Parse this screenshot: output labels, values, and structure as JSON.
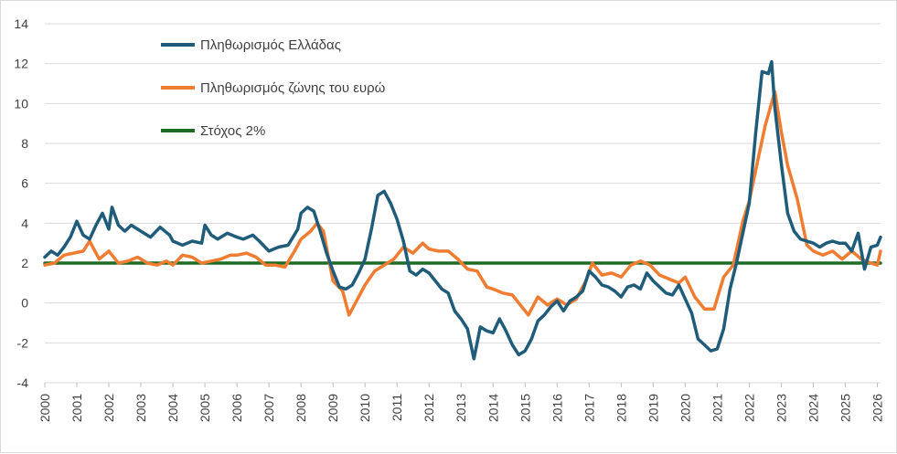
{
  "chart_data": {
    "type": "line",
    "title": "",
    "xlabel": "",
    "ylabel": "",
    "ylim": [
      -4,
      14
    ],
    "xlim": [
      2000,
      2026.1
    ],
    "y_ticks": [
      "-4",
      "-2",
      "0",
      "2",
      "4",
      "6",
      "8",
      "10",
      "12",
      "14"
    ],
    "x_ticks": [
      "2000",
      "2001",
      "2002",
      "2003",
      "2004",
      "2005",
      "2006",
      "2007",
      "2008",
      "2009",
      "2010",
      "2011",
      "2012",
      "2013",
      "2014",
      "2015",
      "2016",
      "2017",
      "2018",
      "2019",
      "2020",
      "2021",
      "2022",
      "2023",
      "2024",
      "2025",
      "2026"
    ],
    "grid": "horizontal",
    "legend_position": "top-left",
    "series": [
      {
        "name": "Πληθωρισμός Ελλάδας",
        "color": "#1f5c7a",
        "x": [
          2000,
          2000.2,
          2000.4,
          2000.6,
          2000.8,
          2001,
          2001.2,
          2001.4,
          2001.6,
          2001.8,
          2002,
          2002.1,
          2002.3,
          2002.5,
          2002.7,
          2003,
          2003.3,
          2003.6,
          2003.9,
          2004,
          2004.3,
          2004.6,
          2004.9,
          2005,
          2005.2,
          2005.4,
          2005.7,
          2006,
          2006.2,
          2006.5,
          2006.7,
          2007,
          2007.3,
          2007.6,
          2007.9,
          2008,
          2008.2,
          2008.4,
          2008.6,
          2008.8,
          2009,
          2009.2,
          2009.4,
          2009.6,
          2009.8,
          2010,
          2010.2,
          2010.4,
          2010.6,
          2010.8,
          2011,
          2011.2,
          2011.4,
          2011.6,
          2011.8,
          2012,
          2012.2,
          2012.4,
          2012.6,
          2012.8,
          2013,
          2013.2,
          2013.4,
          2013.6,
          2013.8,
          2014,
          2014.2,
          2014.4,
          2014.6,
          2014.8,
          2015,
          2015.2,
          2015.4,
          2015.6,
          2015.8,
          2016,
          2016.2,
          2016.4,
          2016.6,
          2016.8,
          2017,
          2017.2,
          2017.4,
          2017.6,
          2017.8,
          2018,
          2018.2,
          2018.4,
          2018.6,
          2018.8,
          2019,
          2019.2,
          2019.4,
          2019.6,
          2019.8,
          2020,
          2020.2,
          2020.4,
          2020.6,
          2020.8,
          2021,
          2021.2,
          2021.4,
          2021.6,
          2021.8,
          2022,
          2022.2,
          2022.4,
          2022.6,
          2022.7,
          2022.8,
          2023,
          2023.2,
          2023.4,
          2023.6,
          2023.8,
          2024,
          2024.2,
          2024.4,
          2024.6,
          2024.8,
          2025,
          2025.2,
          2025.4,
          2025.6,
          2025.8,
          2026,
          2026.1
        ],
        "values": [
          2.3,
          2.6,
          2.4,
          2.8,
          3.3,
          4.1,
          3.4,
          3.2,
          3.9,
          4.5,
          3.7,
          4.8,
          3.9,
          3.6,
          3.9,
          3.6,
          3.3,
          3.8,
          3.4,
          3.1,
          2.9,
          3.1,
          3.0,
          3.9,
          3.4,
          3.2,
          3.5,
          3.3,
          3.2,
          3.4,
          3.1,
          2.6,
          2.8,
          2.9,
          3.7,
          4.5,
          4.8,
          4.6,
          3.6,
          2.5,
          1.6,
          0.8,
          0.7,
          0.9,
          1.5,
          2.2,
          3.7,
          5.4,
          5.6,
          5.0,
          4.2,
          3.1,
          1.6,
          1.4,
          1.7,
          1.5,
          1.1,
          0.7,
          0.5,
          -0.4,
          -0.8,
          -1.3,
          -2.8,
          -1.2,
          -1.4,
          -1.5,
          -0.8,
          -1.4,
          -2.1,
          -2.6,
          -2.4,
          -1.8,
          -0.9,
          -0.6,
          -0.2,
          0.1,
          -0.4,
          0.1,
          0.3,
          0.6,
          1.6,
          1.3,
          0.9,
          0.8,
          0.6,
          0.3,
          0.8,
          0.9,
          0.7,
          1.5,
          1.1,
          0.8,
          0.5,
          0.4,
          0.9,
          0.2,
          -0.5,
          -1.8,
          -2.1,
          -2.4,
          -2.3,
          -1.3,
          0.7,
          2.0,
          3.5,
          5.0,
          8.5,
          11.6,
          11.5,
          12.1,
          9.8,
          7.0,
          4.5,
          3.6,
          3.2,
          3.1,
          3.0,
          2.8,
          3.0,
          3.1,
          3.0,
          3.0,
          2.6,
          3.5,
          1.7,
          2.8,
          2.9,
          3.3
        ],
        "points_note": ""
      },
      {
        "name": "Πληθωρισμός ζώνης του ευρώ",
        "color": "#f07c31",
        "x": [
          2000,
          2000.3,
          2000.6,
          2000.9,
          2001.2,
          2001.4,
          2001.7,
          2002,
          2002.3,
          2002.6,
          2002.9,
          2003.2,
          2003.5,
          2003.8,
          2004,
          2004.3,
          2004.6,
          2004.9,
          2005.2,
          2005.5,
          2005.8,
          2006,
          2006.3,
          2006.6,
          2006.9,
          2007.2,
          2007.5,
          2007.8,
          2008,
          2008.3,
          2008.5,
          2008.7,
          2009,
          2009.3,
          2009.5,
          2009.7,
          2010,
          2010.3,
          2010.6,
          2010.9,
          2011.2,
          2011.5,
          2011.8,
          2012,
          2012.3,
          2012.6,
          2012.9,
          2013.2,
          2013.5,
          2013.8,
          2014,
          2014.3,
          2014.6,
          2014.9,
          2015.1,
          2015.4,
          2015.7,
          2016,
          2016.3,
          2016.6,
          2016.9,
          2017.1,
          2017.4,
          2017.7,
          2018,
          2018.3,
          2018.6,
          2018.9,
          2019.2,
          2019.5,
          2019.8,
          2020,
          2020.3,
          2020.6,
          2020.9,
          2021.2,
          2021.5,
          2021.8,
          2022,
          2022.3,
          2022.5,
          2022.8,
          2023,
          2023.2,
          2023.5,
          2023.8,
          2024,
          2024.3,
          2024.6,
          2024.9,
          2025.2,
          2025.5,
          2025.8,
          2026,
          2026.1
        ],
        "values": [
          1.9,
          2.0,
          2.4,
          2.5,
          2.6,
          3.1,
          2.2,
          2.6,
          2.0,
          2.1,
          2.3,
          2.0,
          1.9,
          2.1,
          1.9,
          2.4,
          2.3,
          2.0,
          2.1,
          2.2,
          2.4,
          2.4,
          2.5,
          2.3,
          1.9,
          1.9,
          1.8,
          2.6,
          3.2,
          3.6,
          4.0,
          3.6,
          1.1,
          0.6,
          -0.6,
          0.0,
          0.9,
          1.6,
          1.9,
          2.2,
          2.8,
          2.5,
          3.0,
          2.7,
          2.6,
          2.6,
          2.2,
          1.7,
          1.6,
          0.8,
          0.7,
          0.5,
          0.4,
          -0.2,
          -0.6,
          0.3,
          -0.1,
          0.2,
          -0.1,
          0.2,
          1.1,
          2.0,
          1.4,
          1.5,
          1.3,
          1.9,
          2.1,
          1.9,
          1.4,
          1.2,
          1.0,
          1.3,
          0.3,
          -0.3,
          -0.3,
          1.3,
          1.9,
          4.1,
          5.1,
          7.4,
          8.9,
          10.6,
          8.6,
          6.9,
          5.2,
          2.9,
          2.6,
          2.4,
          2.6,
          2.2,
          2.6,
          2.2,
          2.0,
          1.9,
          2.6
        ]
      },
      {
        "name": "Στόχος 2%",
        "color": "#1e6b26",
        "x": [
          2000,
          2026.1
        ],
        "values": [
          2,
          2
        ]
      }
    ]
  }
}
